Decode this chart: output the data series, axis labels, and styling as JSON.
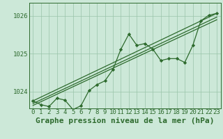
{
  "background_color": "#cce8d8",
  "plot_bg_color": "#cce8d8",
  "line_color": "#2d6a2d",
  "marker_color": "#2d6a2d",
  "grid_color": "#99c4aa",
  "title": "Graphe pression niveau de la mer (hPa)",
  "xlim": [
    -0.5,
    23.5
  ],
  "ylim": [
    1023.55,
    1026.35
  ],
  "yticks": [
    1024,
    1025,
    1026
  ],
  "xticks": [
    0,
    1,
    2,
    3,
    4,
    5,
    6,
    7,
    8,
    9,
    10,
    11,
    12,
    13,
    14,
    15,
    16,
    17,
    18,
    19,
    20,
    21,
    22,
    23
  ],
  "series1": [
    1023.75,
    1023.65,
    1023.6,
    1023.82,
    1023.77,
    1023.52,
    1023.62,
    1024.02,
    1024.18,
    1024.28,
    1024.58,
    1025.12,
    1025.52,
    1025.22,
    1025.27,
    1025.12,
    1024.82,
    1024.87,
    1024.87,
    1024.77,
    1025.22,
    1025.87,
    1026.02,
    1026.07
  ],
  "line2_x": [
    0,
    23
  ],
  "line2_y": [
    1023.75,
    1026.07
  ],
  "line3_x": [
    0,
    23
  ],
  "line3_y": [
    1023.68,
    1025.97
  ],
  "line4_x": [
    0,
    23
  ],
  "line4_y": [
    1023.63,
    1025.9
  ],
  "title_fontsize": 8,
  "tick_fontsize": 6.5
}
